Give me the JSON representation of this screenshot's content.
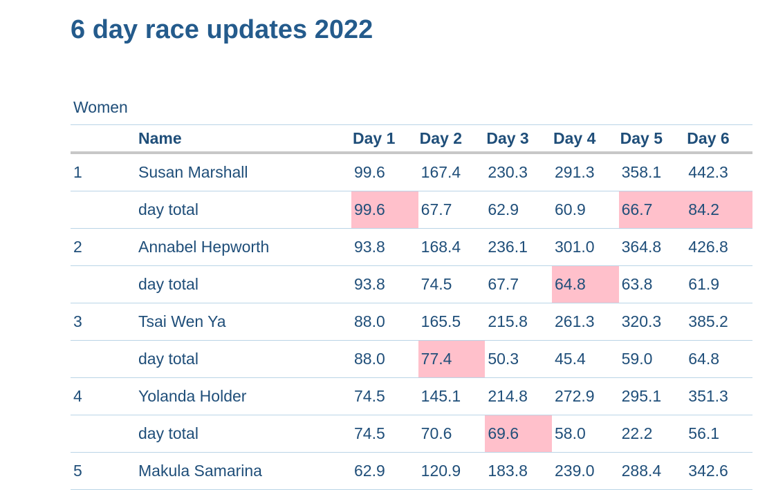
{
  "title": "6 day race updates 2022",
  "caption": "Women",
  "columns": {
    "rank": "",
    "name": "Name",
    "days": [
      "Day 1",
      "Day 2",
      "Day 3",
      "Day 4",
      "Day 5",
      "Day 6"
    ]
  },
  "highlight_color": "#ffc0cb",
  "rows": [
    {
      "rank": "1",
      "name": "Susan Marshall",
      "values": [
        "99.6",
        "167.4",
        "230.3",
        "291.3",
        "358.1",
        "442.3"
      ],
      "highlight": []
    },
    {
      "rank": "",
      "name": "day total",
      "values": [
        "99.6",
        "67.7",
        "62.9",
        "60.9",
        "66.7",
        "84.2"
      ],
      "highlight": [
        0,
        4,
        5
      ]
    },
    {
      "rank": "2",
      "name": "Annabel Hepworth",
      "values": [
        "93.8",
        "168.4",
        "236.1",
        "301.0",
        "364.8",
        "426.8"
      ],
      "highlight": []
    },
    {
      "rank": "",
      "name": "day total",
      "values": [
        "93.8",
        "74.5",
        "67.7",
        "64.8",
        "63.8",
        "61.9"
      ],
      "highlight": [
        3
      ]
    },
    {
      "rank": "3",
      "name": "Tsai Wen Ya",
      "values": [
        "88.0",
        "165.5",
        "215.8",
        "261.3",
        "320.3",
        "385.2"
      ],
      "highlight": []
    },
    {
      "rank": "",
      "name": "day total",
      "values": [
        "88.0",
        "77.4",
        "50.3",
        "45.4",
        "59.0",
        "64.8"
      ],
      "highlight": [
        1
      ]
    },
    {
      "rank": "4",
      "name": "Yolanda Holder",
      "values": [
        "74.5",
        "145.1",
        "214.8",
        "272.9",
        "295.1",
        "351.3"
      ],
      "highlight": []
    },
    {
      "rank": "",
      "name": "day total",
      "values": [
        "74.5",
        "70.6",
        "69.6",
        "58.0",
        "22.2",
        "56.1"
      ],
      "highlight": [
        2
      ]
    },
    {
      "rank": "5",
      "name": "Makula Samarina",
      "values": [
        "62.9",
        "120.9",
        "183.8",
        "239.0",
        "288.4",
        "342.6"
      ],
      "highlight": []
    }
  ]
}
